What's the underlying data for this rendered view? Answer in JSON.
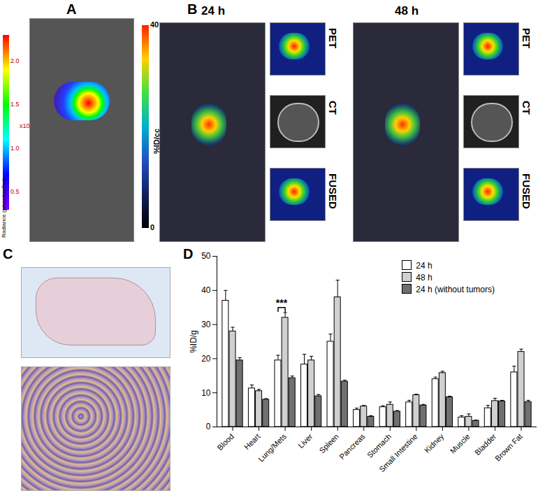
{
  "panels": {
    "A": {
      "label": "A",
      "colorbar": {
        "title": "Radiance (p/sec/cm²/sr)",
        "exponent": "x10⁵",
        "range": [
          0.3,
          2.3
        ],
        "ticks": [
          {
            "value": 2,
            "label": "2.0"
          },
          1.5,
          {
            "value": 1,
            "label": "1.0"
          },
          0.5
        ]
      }
    },
    "B": {
      "label": "B",
      "times": [
        "24 h",
        "48 h"
      ],
      "views": [
        "PET",
        "CT",
        "FUSED"
      ],
      "colorbar": {
        "title": "%ID/cc",
        "range": [
          0,
          40
        ],
        "ticks": [
          0,
          40
        ]
      }
    },
    "C": {
      "label": "C"
    }
  },
  "chart_data": {
    "type": "bar",
    "panel_label": "D",
    "y_label": "%ID/g",
    "categories": [
      "Blood",
      "Heart",
      "Lung/Mets",
      "Liver",
      "Spleen",
      "Pancreas",
      "Stomach",
      "Small Intestine",
      "Kidney",
      "Muscle",
      "Bladder",
      "Brown Fat"
    ],
    "series": [
      {
        "name": "24 h",
        "color": "#ffffff",
        "values": [
          37,
          11.3,
          19.5,
          18.3,
          25,
          5,
          5.8,
          7.2,
          14,
          2.8,
          5.5,
          16
        ],
        "errors": [
          3,
          1,
          1.5,
          3,
          2.2,
          0.5,
          0.4,
          0.6,
          0.6,
          0.5,
          0.8,
          1.8
        ]
      },
      {
        "name": "48 h",
        "color": "#d0d0d0",
        "values": [
          28,
          10.5,
          32,
          19.5,
          38,
          6,
          6.5,
          9.3,
          15.8,
          3,
          7.6,
          22
        ],
        "errors": [
          1.2,
          0.5,
          1.5,
          1.2,
          5,
          0.3,
          0.8,
          0.3,
          0.5,
          0.8,
          0.8,
          0.8
        ]
      },
      {
        "name": "24 h (without tumors)",
        "color": "#707070",
        "values": [
          19.5,
          8,
          14.3,
          9,
          13.3,
          3,
          4.5,
          6.3,
          8.7,
          1.8,
          7.5,
          7.3
        ],
        "errors": [
          0.8,
          0.3,
          0.6,
          0.5,
          0.4,
          0.3,
          0.3,
          0.3,
          0.3,
          0.2,
          0.3,
          0.5
        ]
      }
    ],
    "ylim": [
      0,
      50
    ],
    "yticks": [
      0,
      10,
      20,
      30,
      40,
      50
    ],
    "legend": "top-right",
    "annotations": [
      {
        "text": "***",
        "category": "Lung/Mets",
        "between": [
          "24 h",
          "48 h"
        ]
      }
    ]
  }
}
